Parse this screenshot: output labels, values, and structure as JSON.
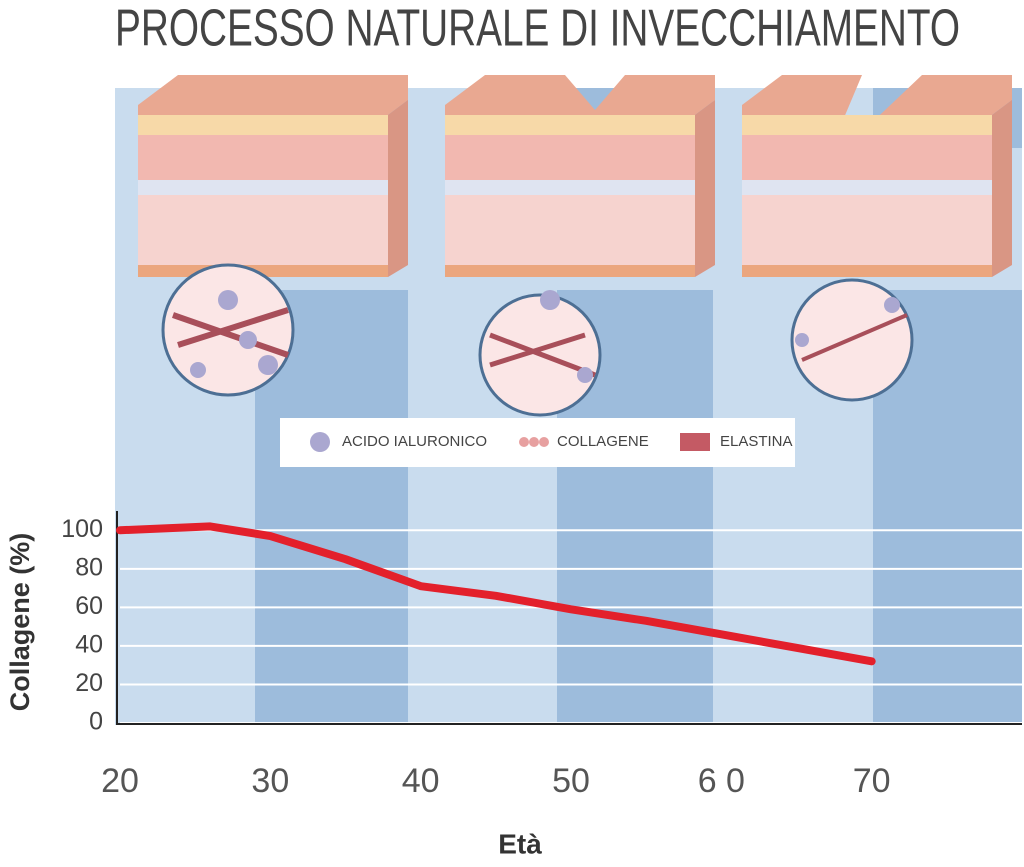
{
  "chart_data": {
    "type": "line",
    "title": "PROCESSO NATURALE DI INVECCHIAMENTO",
    "x_label": "Età",
    "y_label": "Collagene (%)",
    "illustration_legend": [
      "ACIDO IALURONICO",
      "COLLAGENE",
      "ELASTINA"
    ],
    "x": [
      20,
      26,
      30,
      35,
      40,
      45,
      50,
      55,
      60,
      65,
      70
    ],
    "series": [
      {
        "name": "Collagene",
        "color": "#e3202b",
        "values": [
          100,
          102,
          97,
          85,
          71,
          66,
          59,
          53,
          46,
          39,
          32
        ]
      }
    ],
    "xlim": [
      20,
      80
    ],
    "xticks": [
      20,
      30,
      40,
      50,
      {
        "value": 60,
        "label": "6 0"
      },
      70
    ],
    "ylim": [
      0,
      110
    ],
    "yticks": [
      0,
      20,
      40,
      60,
      80,
      100
    ],
    "grid": true
  }
}
